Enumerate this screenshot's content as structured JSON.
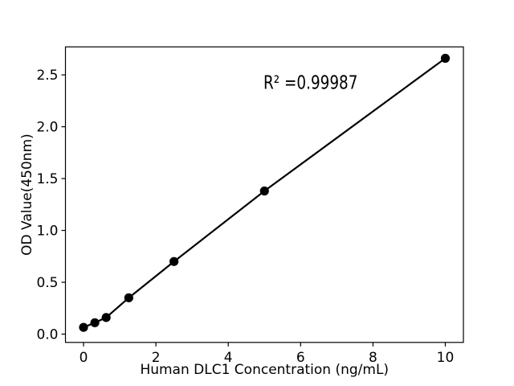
{
  "figure": {
    "background_color": "#ffffff",
    "foreground_color": "#000000"
  },
  "chart_data": {
    "type": "line",
    "title": "",
    "xlabel": "Human DLC1 Concentration (ng/mL)",
    "ylabel": "OD Value(450nm)",
    "annotation": "R² =0.99987",
    "r_squared": 0.99987,
    "x": [
      0,
      0.3125,
      0.625,
      1.25,
      2.5,
      5,
      10
    ],
    "y": [
      0.065,
      0.11,
      0.16,
      0.35,
      0.7,
      1.38,
      2.66
    ],
    "xlim": [
      -0.5,
      10.5
    ],
    "ylim": [
      -0.08,
      2.77
    ],
    "xticks": {
      "values": [
        0,
        2,
        4,
        6,
        8,
        10
      ],
      "labels": [
        "0",
        "2",
        "4",
        "6",
        "8",
        "10"
      ]
    },
    "yticks": {
      "values": [
        0,
        0.5,
        1,
        1.5,
        2,
        2.5
      ],
      "labels": [
        "0.0",
        "0.5",
        "1.0",
        "1.5",
        "2.0",
        "2.5"
      ]
    },
    "grid": false,
    "legend": null,
    "line_color": "#000000",
    "marker_color": "#000000",
    "marker": "circle"
  }
}
